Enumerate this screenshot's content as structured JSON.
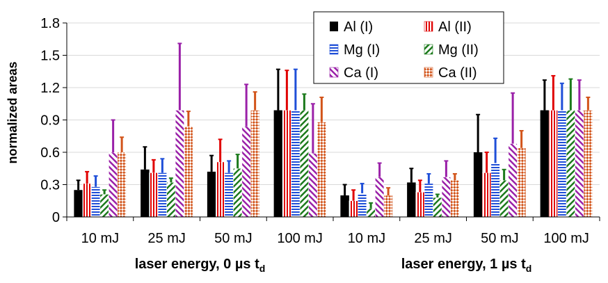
{
  "chart_data": {
    "type": "bar",
    "ylabel": "normalized areas",
    "ylim": [
      0,
      1.8
    ],
    "yticks": [
      "0",
      "0.3",
      "0.6",
      "0.9",
      "1.2",
      "1.5",
      "1.8"
    ],
    "categories": [
      "10 mJ",
      "25 mJ",
      "50 mJ",
      "100 mJ",
      "10 mJ",
      "25 mJ",
      "50 mJ",
      "100 mJ"
    ],
    "groups": [
      {
        "label": "laser energy, 0 µs t",
        "subscript": "d"
      },
      {
        "label": "laser energy, 1 µs t",
        "subscript": "d"
      }
    ],
    "series": [
      {
        "name": "Al (I)",
        "color": "#000000",
        "pattern": "solid",
        "values": [
          0.25,
          0.44,
          0.42,
          0.99,
          0.2,
          0.32,
          0.6,
          0.99
        ],
        "errors": [
          0.09,
          0.21,
          0.15,
          0.38,
          0.1,
          0.13,
          0.35,
          0.28
        ]
      },
      {
        "name": "Al (II)",
        "color": "#e00000",
        "pattern": "vertical",
        "values": [
          0.31,
          0.41,
          0.51,
          0.99,
          0.15,
          0.23,
          0.41,
          0.99
        ],
        "errors": [
          0.11,
          0.12,
          0.21,
          0.37,
          0.1,
          0.11,
          0.19,
          0.32
        ]
      },
      {
        "name": "Mg (I)",
        "color": "#1f4fd8",
        "pattern": "horizontal",
        "values": [
          0.28,
          0.41,
          0.41,
          0.99,
          0.22,
          0.31,
          0.5,
          0.99
        ],
        "errors": [
          0.1,
          0.13,
          0.11,
          0.38,
          0.09,
          0.09,
          0.23,
          0.25
        ]
      },
      {
        "name": "Mg (II)",
        "color": "#1c7a1c",
        "pattern": "diagonal-down",
        "values": [
          0.21,
          0.32,
          0.45,
          0.99,
          0.08,
          0.18,
          0.34,
          0.99
        ],
        "errors": [
          0.04,
          0.04,
          0.13,
          0.15,
          0.05,
          0.03,
          0.1,
          0.29
        ]
      },
      {
        "name": "Ca (I)",
        "color": "#9a20a8",
        "pattern": "diagonal-up",
        "values": [
          0.6,
          0.99,
          0.84,
          0.59,
          0.37,
          0.37,
          0.68,
          0.99
        ],
        "errors": [
          0.3,
          0.62,
          0.39,
          0.46,
          0.13,
          0.15,
          0.47,
          0.28
        ]
      },
      {
        "name": "Ca (II)",
        "color": "#d2541a",
        "pattern": "checker",
        "values": [
          0.6,
          0.84,
          0.99,
          0.88,
          0.2,
          0.34,
          0.64,
          0.99
        ],
        "errors": [
          0.14,
          0.14,
          0.17,
          0.23,
          0.07,
          0.06,
          0.16,
          0.12
        ]
      }
    ],
    "legend": "top-right"
  }
}
